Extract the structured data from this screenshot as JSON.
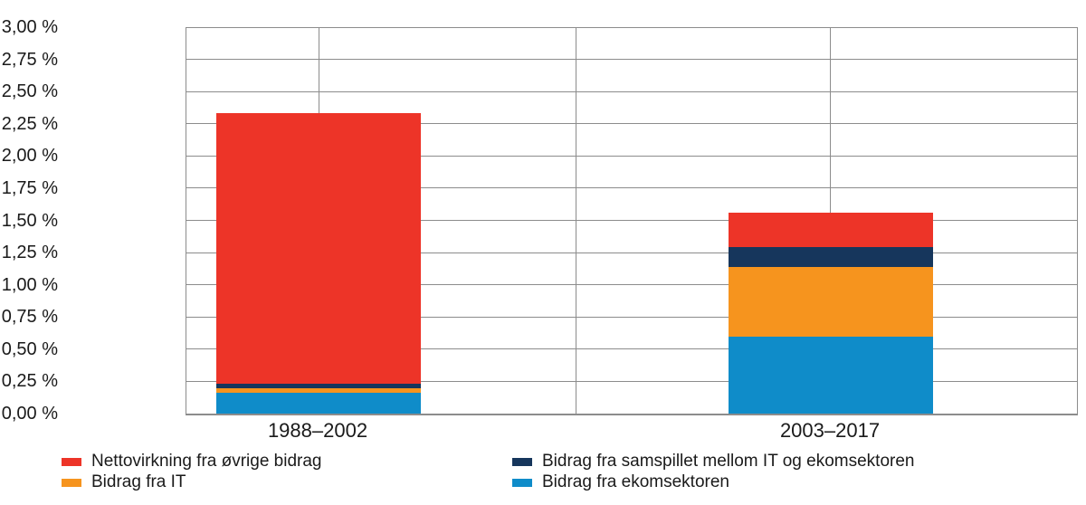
{
  "chart_data": {
    "type": "bar",
    "stacked": true,
    "categories": [
      "1988–2002",
      "2003–2017"
    ],
    "series": [
      {
        "name": "Bidrag fra ekomsektoren",
        "color": "#0f8cc9",
        "values": [
          0.16,
          0.6
        ]
      },
      {
        "name": "Bidrag fra IT",
        "color": "#f6941e",
        "values": [
          0.04,
          0.54
        ]
      },
      {
        "name": "Bidrag fra samspillet mellom IT og ekomsektoren",
        "color": "#16365c",
        "values": [
          0.03,
          0.15
        ]
      },
      {
        "name": "Nettovirkning fra øvrige bidrag",
        "color": "#ed3428",
        "values": [
          2.1,
          0.27
        ]
      }
    ],
    "estimated_totals": [
      2.33,
      1.56
    ],
    "title": "",
    "xlabel": "",
    "ylabel": "",
    "ylim": [
      0,
      3
    ],
    "ytick_step": 0.25,
    "ytick_labels_bottom_up": [
      "0,00 %",
      "0,25 %",
      "0,50 %",
      "0,75 %",
      "1,00 %",
      "1,25 %",
      "1,50 %",
      "1,75 %",
      "2,00 %",
      "2,25 %",
      "2,50 %",
      "2,75 %",
      "3,00 %"
    ],
    "grid": true,
    "grid_color": "#8c8c8c",
    "legend_position": "bottom"
  },
  "legend": {
    "col1": [
      {
        "label": "Nettovirkning fra øvrige bidrag",
        "color": "#ed3428"
      },
      {
        "label": "Bidrag fra IT",
        "color": "#f6941e"
      }
    ],
    "col2": [
      {
        "label": "Bidrag fra samspillet mellom IT og ekomsektoren",
        "color": "#16365c"
      },
      {
        "label": "Bidrag fra ekomsektoren",
        "color": "#0f8cc9"
      }
    ]
  }
}
